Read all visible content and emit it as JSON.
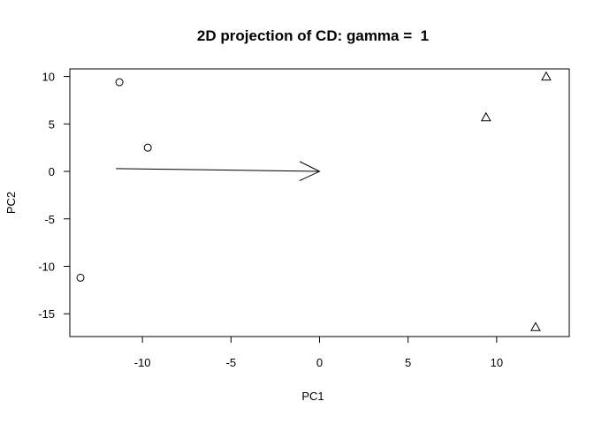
{
  "chart_data": {
    "type": "scatter",
    "title": "2D projection of CD: gamma =  1",
    "xlabel": "PC1",
    "ylabel": "PC2",
    "xlim": [
      -14.1,
      14.1
    ],
    "ylim": [
      -17.4,
      10.8
    ],
    "grid": false,
    "legend": "none",
    "x_ticks": [
      -10,
      -5,
      0,
      5,
      10
    ],
    "y_ticks": [
      10,
      5,
      0,
      -5,
      -10,
      -15
    ],
    "series": [
      {
        "marker": "circle",
        "points": [
          {
            "x": -11.3,
            "y": 9.4
          },
          {
            "x": -9.7,
            "y": 2.5
          },
          {
            "x": -13.5,
            "y": -11.2
          }
        ]
      },
      {
        "marker": "triangle",
        "points": [
          {
            "x": 9.4,
            "y": 5.7
          },
          {
            "x": 12.8,
            "y": 10.0
          },
          {
            "x": 12.2,
            "y": -16.4
          }
        ]
      }
    ],
    "annotations": [
      {
        "type": "arrow",
        "x0": -11.5,
        "y0": 0.3,
        "x1": 0.0,
        "y1": 0.0
      }
    ]
  }
}
